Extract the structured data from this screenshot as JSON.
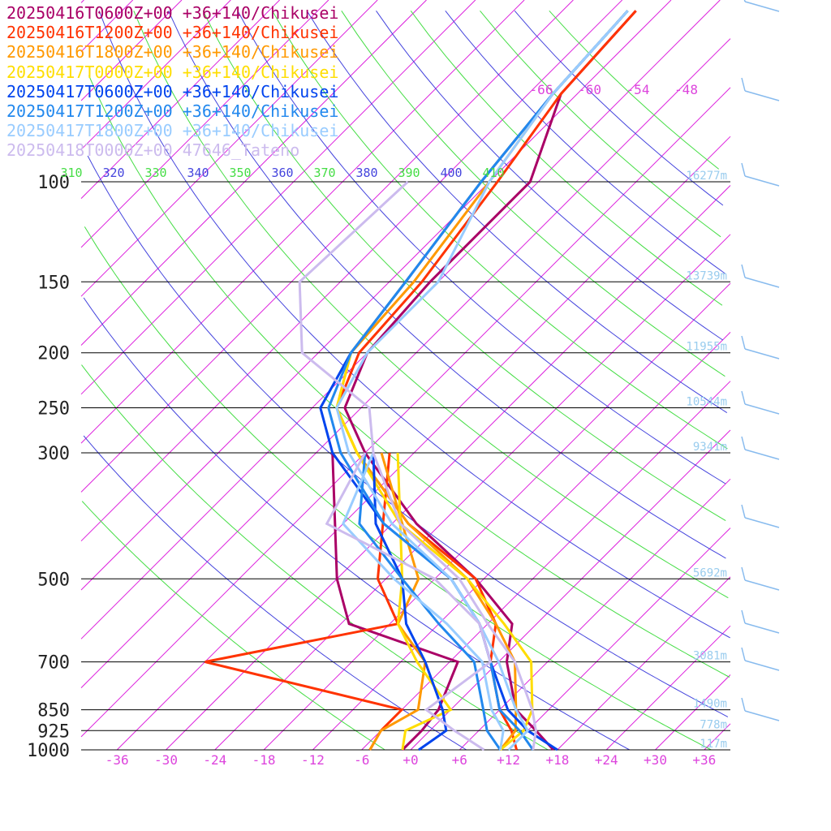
{
  "chart_data": {
    "type": "line",
    "title": "",
    "xlabel": "",
    "ylabel": "",
    "pressure_levels": [
      {
        "p": 100,
        "label": "100",
        "height": "16277m"
      },
      {
        "p": 150,
        "label": "150",
        "height": "13739m"
      },
      {
        "p": 200,
        "label": "200",
        "height": "11955m"
      },
      {
        "p": 250,
        "label": "250",
        "height": "10544m"
      },
      {
        "p": 300,
        "label": "300",
        "height": "9341m"
      },
      {
        "p": 500,
        "label": "500",
        "height": "5692m"
      },
      {
        "p": 700,
        "label": "700",
        "height": "3081m"
      },
      {
        "p": 850,
        "label": "850",
        "height": "1490m"
      },
      {
        "p": 925,
        "label": "925",
        "height": "778m"
      },
      {
        "p": 1000,
        "label": "1000",
        "height": "117m"
      }
    ],
    "temperature_ticks": [
      "-36",
      "-30",
      "-24",
      "-18",
      "-12",
      "-6",
      "+0",
      "+6",
      "+12",
      "+18",
      "+24",
      "+30",
      "+36"
    ],
    "upper_temperature_labels": [
      "-66",
      "-60",
      "-54",
      "-48"
    ],
    "theta_labels": [
      "310",
      "320",
      "330",
      "340",
      "350",
      "360",
      "370",
      "380",
      "390",
      "400",
      "410"
    ],
    "series": [
      {
        "name": "20250416T0600Z+00 +36+140/Chikusei",
        "color": "#aa0066",
        "temperature": [
          [
            1000,
            17.5
          ],
          [
            925,
            13
          ],
          [
            850,
            8
          ],
          [
            700,
            1
          ],
          [
            600,
            -3
          ],
          [
            500,
            -13
          ],
          [
            400,
            -27
          ],
          [
            300,
            -42
          ],
          [
            250,
            -50
          ],
          [
            200,
            -54
          ],
          [
            150,
            -55
          ],
          [
            100,
            -55
          ],
          [
            70,
            -62
          ],
          [
            50,
            -63
          ]
        ],
        "dewpoint": [
          [
            1000,
            -1
          ],
          [
            925,
            -1
          ],
          [
            850,
            -1.5
          ],
          [
            700,
            -5
          ],
          [
            600,
            -23
          ],
          [
            500,
            -30
          ],
          [
            300,
            -46
          ]
        ]
      },
      {
        "name": "20250416T1200Z+00 +36+140/Chikusei",
        "color": "#ff3300",
        "temperature": [
          [
            1000,
            13
          ],
          [
            925,
            10
          ],
          [
            850,
            6
          ],
          [
            700,
            -1
          ],
          [
            600,
            -5
          ],
          [
            500,
            -13
          ],
          [
            400,
            -28
          ],
          [
            300,
            -43
          ],
          [
            250,
            -51
          ],
          [
            200,
            -55
          ],
          [
            150,
            -56
          ],
          [
            100,
            -59
          ],
          [
            70,
            -62
          ],
          [
            50,
            -63
          ]
        ],
        "dewpoint": [
          [
            1000,
            -5
          ],
          [
            925,
            -6
          ],
          [
            850,
            -6
          ],
          [
            700,
            -36
          ],
          [
            600,
            -17
          ],
          [
            500,
            -25
          ],
          [
            300,
            -39
          ]
        ]
      },
      {
        "name": "20250416T1800Z+00 +36+140/Chikusei",
        "color": "#ff9900",
        "temperature": [
          [
            1000,
            11
          ],
          [
            925,
            10.5
          ],
          [
            850,
            8
          ],
          [
            700,
            2
          ],
          [
            600,
            -5
          ],
          [
            500,
            -14
          ],
          [
            400,
            -28
          ],
          [
            300,
            -43
          ],
          [
            250,
            -51
          ],
          [
            200,
            -56
          ],
          [
            150,
            -57
          ],
          [
            100,
            -60
          ],
          [
            70,
            -63
          ],
          [
            50,
            -64
          ]
        ],
        "dewpoint": [
          [
            1000,
            -5
          ],
          [
            925,
            -6
          ],
          [
            850,
            -4
          ],
          [
            700,
            -9
          ],
          [
            600,
            -17
          ],
          [
            500,
            -20
          ],
          [
            300,
            -40
          ]
        ]
      },
      {
        "name": "20250417T0000Z+00 +36+140/Chikusei",
        "color": "#ffdd00",
        "temperature": [
          [
            1000,
            11
          ],
          [
            925,
            11.5
          ],
          [
            850,
            10
          ],
          [
            700,
            4
          ],
          [
            600,
            -4
          ],
          [
            500,
            -14
          ],
          [
            400,
            -29
          ],
          [
            300,
            -43
          ],
          [
            250,
            -51
          ],
          [
            200,
            -56
          ],
          [
            150,
            -58
          ],
          [
            100,
            -61
          ],
          [
            70,
            -63
          ],
          [
            50,
            -64
          ]
        ],
        "dewpoint": [
          [
            1000,
            -1
          ],
          [
            925,
            -3
          ],
          [
            850,
            0
          ],
          [
            700,
            -10
          ],
          [
            600,
            -17
          ],
          [
            500,
            -22
          ],
          [
            300,
            -38
          ]
        ]
      },
      {
        "name": "20250417T0600Z+00 +36+140/Chikusei",
        "color": "#0044ee",
        "temperature": [
          [
            1000,
            18
          ],
          [
            925,
            12
          ],
          [
            850,
            7
          ],
          [
            700,
            -1
          ],
          [
            600,
            -7
          ],
          [
            500,
            -16
          ],
          [
            400,
            -31
          ],
          [
            300,
            -46
          ],
          [
            250,
            -53
          ],
          [
            200,
            -56
          ],
          [
            150,
            -58
          ],
          [
            100,
            -61
          ],
          [
            70,
            -63
          ],
          [
            50,
            -64
          ]
        ],
        "dewpoint": [
          [
            1000,
            1
          ],
          [
            925,
            2
          ],
          [
            850,
            -1
          ],
          [
            700,
            -9
          ],
          [
            600,
            -16
          ],
          [
            500,
            -22
          ],
          [
            400,
            -32
          ],
          [
            300,
            -41
          ]
        ]
      },
      {
        "name": "20250417T1200Z+00 +36+140/Chikusei",
        "color": "#2288ee",
        "temperature": [
          [
            1000,
            15
          ],
          [
            925,
            11
          ],
          [
            850,
            6
          ],
          [
            700,
            -1
          ],
          [
            600,
            -7
          ],
          [
            500,
            -16
          ],
          [
            400,
            -31
          ],
          [
            300,
            -45
          ],
          [
            250,
            -52
          ],
          [
            200,
            -56
          ],
          [
            150,
            -58
          ],
          [
            100,
            -61
          ],
          [
            70,
            -63
          ],
          [
            50,
            -64
          ]
        ],
        "dewpoint": [
          [
            1000,
            11
          ],
          [
            925,
            7
          ],
          [
            850,
            4
          ],
          [
            700,
            -3
          ],
          [
            600,
            -12
          ],
          [
            500,
            -22
          ],
          [
            400,
            -34
          ],
          [
            300,
            -42
          ]
        ]
      },
      {
        "name": "20250417T1800Z+00 +36+140/Chikusei",
        "color": "#99ccff",
        "temperature": [
          [
            1000,
            12
          ],
          [
            925,
            12
          ],
          [
            850,
            8
          ],
          [
            700,
            0
          ],
          [
            600,
            -7
          ],
          [
            500,
            -16
          ],
          [
            400,
            -30
          ],
          [
            300,
            -44
          ],
          [
            250,
            -51
          ],
          [
            200,
            -54
          ],
          [
            150,
            -54
          ],
          [
            100,
            -60
          ],
          [
            70,
            -63
          ],
          [
            50,
            -64
          ]
        ],
        "dewpoint": [
          [
            1000,
            11
          ],
          [
            925,
            9
          ],
          [
            850,
            5
          ],
          [
            700,
            -2
          ],
          [
            600,
            -11
          ],
          [
            500,
            -23
          ],
          [
            400,
            -36
          ],
          [
            300,
            -41
          ]
        ]
      },
      {
        "name": "20250418T0000Z+00 47646_Tateno",
        "color": "#ccbbee",
        "temperature": [
          [
            1000,
            15
          ],
          [
            925,
            13
          ],
          [
            850,
            10
          ],
          [
            700,
            2
          ],
          [
            600,
            -6
          ],
          [
            500,
            -15
          ],
          [
            400,
            -29
          ],
          [
            300,
            -41
          ],
          [
            250,
            -47
          ],
          [
            200,
            -62
          ],
          [
            150,
            -71
          ],
          [
            100,
            -70
          ]
        ],
        "dewpoint": [
          [
            1000,
            9
          ],
          [
            925,
            3
          ],
          [
            850,
            -3
          ],
          [
            700,
            -1
          ],
          [
            600,
            -7
          ],
          [
            500,
            -18
          ],
          [
            400,
            -38
          ],
          [
            300,
            -42
          ]
        ]
      }
    ]
  }
}
